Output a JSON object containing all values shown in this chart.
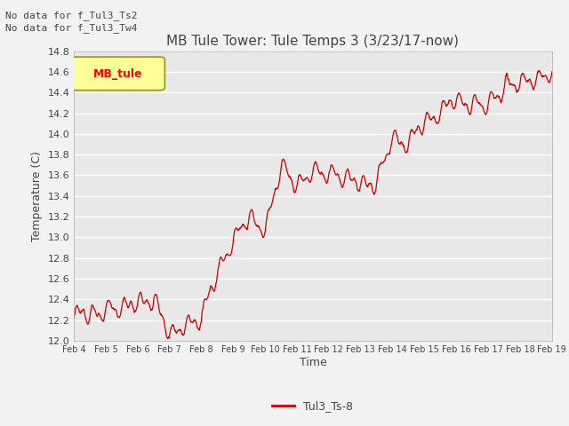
{
  "title": "MB Tule Tower: Tule Temps 3 (3/23/17-now)",
  "xlabel": "Time",
  "ylabel": "Temperature (C)",
  "line_color": "#cc0000",
  "line_label": "Tul3_Ts-8",
  "legend_label": "MB_tule",
  "legend_bg": "#ffff99",
  "legend_border": "#999900",
  "no_data_text_1": "No data for f_Tul3_Ts2",
  "no_data_text_2": "No data for f_Tul3_Tw4",
  "ylim": [
    12.0,
    14.8
  ],
  "yticks": [
    12.0,
    12.2,
    12.4,
    12.6,
    12.8,
    13.0,
    13.2,
    13.4,
    13.6,
    13.8,
    14.0,
    14.2,
    14.4,
    14.6,
    14.8
  ],
  "bg_color": "#e8e8e8",
  "fig_bg_color": "#f2f2f2",
  "grid_color": "#ffffff",
  "text_color": "#444444",
  "title_fontsize": 11,
  "axis_fontsize": 9,
  "tick_fontsize": 8
}
